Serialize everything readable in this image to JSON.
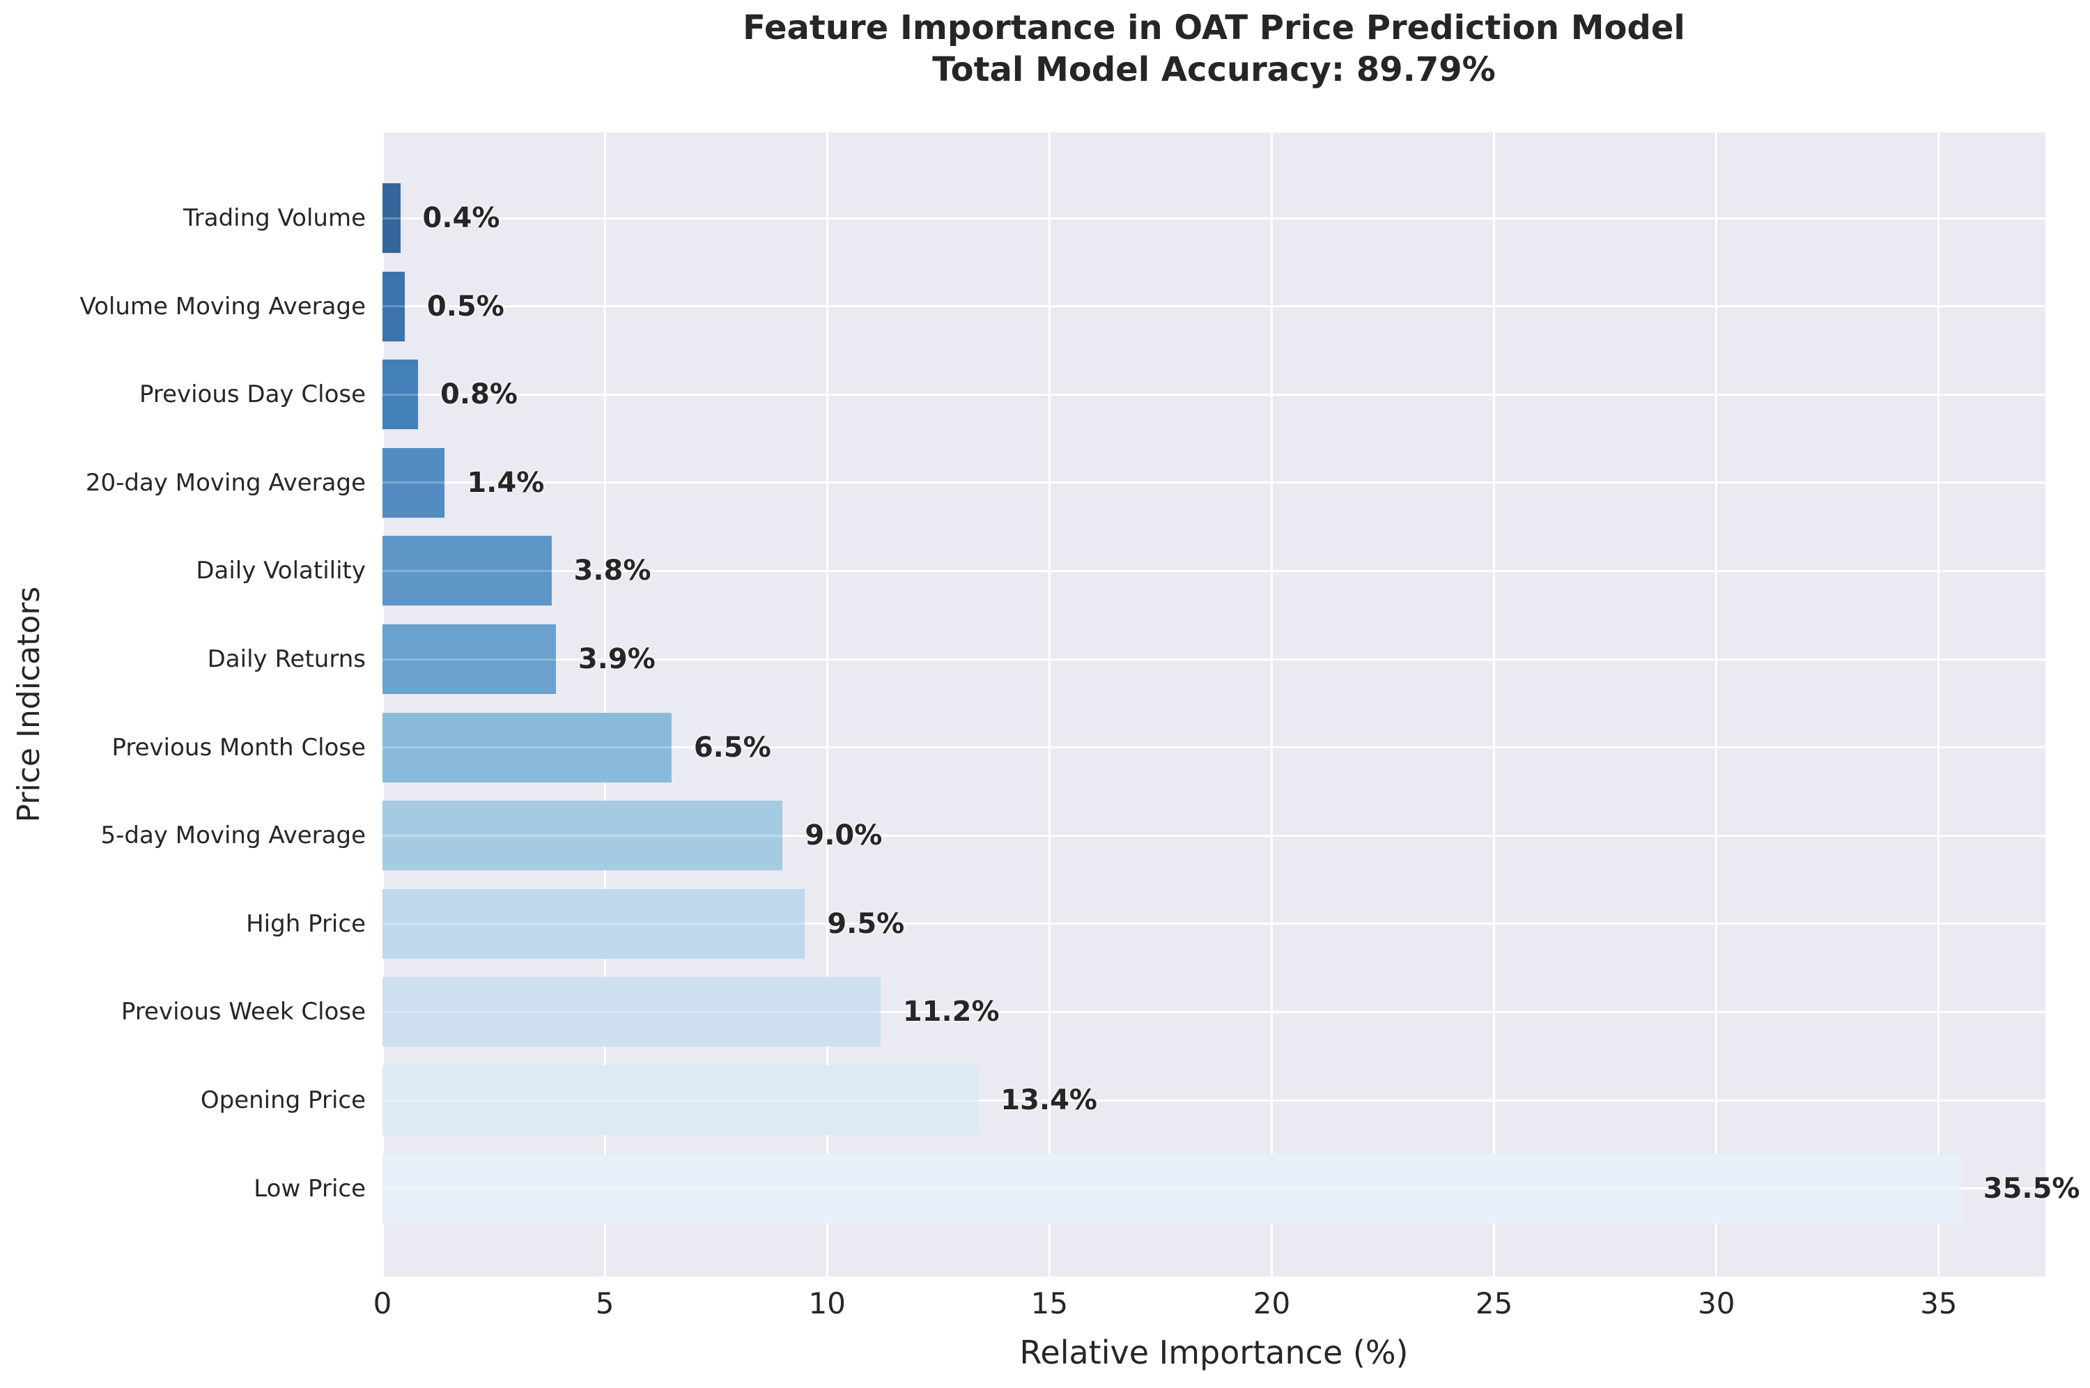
{
  "title": {
    "line1": "Feature Importance in OAT Price Prediction Model",
    "line2": "Total Model Accuracy: 89.79%"
  },
  "chart_data": {
    "type": "bar",
    "orientation": "horizontal",
    "title": "Feature Importance in OAT Price Prediction Model",
    "subtitle": "Total Model Accuracy: 89.79%",
    "xlabel": "Relative Importance (%)",
    "ylabel": "Price Indicators",
    "categories": [
      "Trading Volume",
      "Volume Moving Average",
      "Previous Day Close",
      "20-day Moving Average",
      "Daily Volatility",
      "Daily Returns",
      "Previous Month Close",
      "5-day Moving Average",
      "High Price",
      "Previous Week Close",
      "Opening Price",
      "Low Price"
    ],
    "values": [
      0.4,
      0.5,
      0.8,
      1.4,
      3.8,
      3.9,
      6.5,
      9.0,
      9.5,
      11.2,
      13.4,
      35.5
    ],
    "value_labels": [
      "0.4%",
      "0.5%",
      "0.8%",
      "1.4%",
      "3.8%",
      "3.9%",
      "6.5%",
      "9.0%",
      "9.5%",
      "11.2%",
      "13.4%",
      "35.5%"
    ],
    "x_ticks": [
      0,
      5,
      10,
      15,
      20,
      25,
      30,
      35
    ],
    "xlim": [
      0,
      37.4
    ],
    "grid": true,
    "legend_position": "none",
    "bar_colors": [
      "#34669c",
      "#3b73ad",
      "#4380b9",
      "#538cc1",
      "#5e96c7",
      "#6ba1cd",
      "#8abada",
      "#a5cbe3",
      "#bfd8ec",
      "#cfe0f0",
      "#dceaf5",
      "#e8f0f9"
    ],
    "plot_background": "#eaeaf2",
    "grid_color": "#ffffff",
    "text_color": "#262626"
  }
}
